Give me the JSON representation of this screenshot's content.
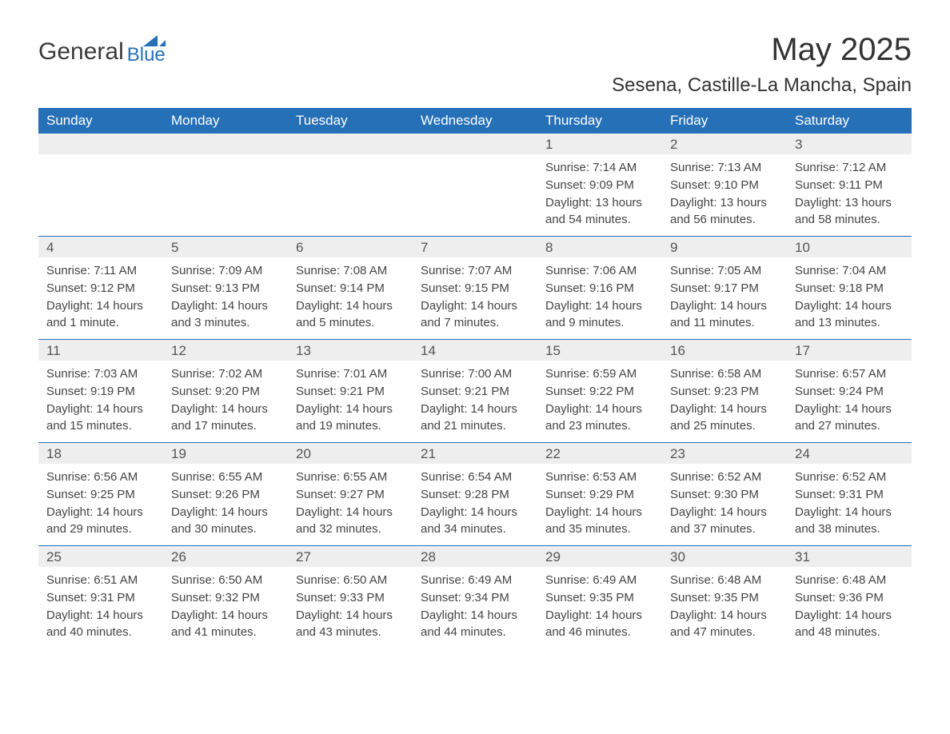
{
  "logo": {
    "text_general": "General",
    "text_blue": "Blue",
    "icon_color": "#2670b8"
  },
  "title": "May 2025",
  "subtitle": "Sesena, Castille-La Mancha, Spain",
  "colors": {
    "header_bg": "#2670b8",
    "header_text": "#ffffff",
    "daynum_bg": "#eeeeee",
    "daynum_text": "#555555",
    "body_text": "#444444",
    "week_border": "#2670b8",
    "page_bg": "#ffffff"
  },
  "fonts": {
    "title_size": 40,
    "subtitle_size": 24,
    "header_cell_size": 17,
    "daynum_size": 17,
    "body_size": 15,
    "family": "Arial"
  },
  "day_headers": [
    "Sunday",
    "Monday",
    "Tuesday",
    "Wednesday",
    "Thursday",
    "Friday",
    "Saturday"
  ],
  "weeks": [
    [
      {
        "day": "",
        "sunrise": "",
        "sunset": "",
        "daylight": ""
      },
      {
        "day": "",
        "sunrise": "",
        "sunset": "",
        "daylight": ""
      },
      {
        "day": "",
        "sunrise": "",
        "sunset": "",
        "daylight": ""
      },
      {
        "day": "",
        "sunrise": "",
        "sunset": "",
        "daylight": ""
      },
      {
        "day": "1",
        "sunrise": "Sunrise: 7:14 AM",
        "sunset": "Sunset: 9:09 PM",
        "daylight": "Daylight: 13 hours and 54 minutes."
      },
      {
        "day": "2",
        "sunrise": "Sunrise: 7:13 AM",
        "sunset": "Sunset: 9:10 PM",
        "daylight": "Daylight: 13 hours and 56 minutes."
      },
      {
        "day": "3",
        "sunrise": "Sunrise: 7:12 AM",
        "sunset": "Sunset: 9:11 PM",
        "daylight": "Daylight: 13 hours and 58 minutes."
      }
    ],
    [
      {
        "day": "4",
        "sunrise": "Sunrise: 7:11 AM",
        "sunset": "Sunset: 9:12 PM",
        "daylight": "Daylight: 14 hours and 1 minute."
      },
      {
        "day": "5",
        "sunrise": "Sunrise: 7:09 AM",
        "sunset": "Sunset: 9:13 PM",
        "daylight": "Daylight: 14 hours and 3 minutes."
      },
      {
        "day": "6",
        "sunrise": "Sunrise: 7:08 AM",
        "sunset": "Sunset: 9:14 PM",
        "daylight": "Daylight: 14 hours and 5 minutes."
      },
      {
        "day": "7",
        "sunrise": "Sunrise: 7:07 AM",
        "sunset": "Sunset: 9:15 PM",
        "daylight": "Daylight: 14 hours and 7 minutes."
      },
      {
        "day": "8",
        "sunrise": "Sunrise: 7:06 AM",
        "sunset": "Sunset: 9:16 PM",
        "daylight": "Daylight: 14 hours and 9 minutes."
      },
      {
        "day": "9",
        "sunrise": "Sunrise: 7:05 AM",
        "sunset": "Sunset: 9:17 PM",
        "daylight": "Daylight: 14 hours and 11 minutes."
      },
      {
        "day": "10",
        "sunrise": "Sunrise: 7:04 AM",
        "sunset": "Sunset: 9:18 PM",
        "daylight": "Daylight: 14 hours and 13 minutes."
      }
    ],
    [
      {
        "day": "11",
        "sunrise": "Sunrise: 7:03 AM",
        "sunset": "Sunset: 9:19 PM",
        "daylight": "Daylight: 14 hours and 15 minutes."
      },
      {
        "day": "12",
        "sunrise": "Sunrise: 7:02 AM",
        "sunset": "Sunset: 9:20 PM",
        "daylight": "Daylight: 14 hours and 17 minutes."
      },
      {
        "day": "13",
        "sunrise": "Sunrise: 7:01 AM",
        "sunset": "Sunset: 9:21 PM",
        "daylight": "Daylight: 14 hours and 19 minutes."
      },
      {
        "day": "14",
        "sunrise": "Sunrise: 7:00 AM",
        "sunset": "Sunset: 9:21 PM",
        "daylight": "Daylight: 14 hours and 21 minutes."
      },
      {
        "day": "15",
        "sunrise": "Sunrise: 6:59 AM",
        "sunset": "Sunset: 9:22 PM",
        "daylight": "Daylight: 14 hours and 23 minutes."
      },
      {
        "day": "16",
        "sunrise": "Sunrise: 6:58 AM",
        "sunset": "Sunset: 9:23 PM",
        "daylight": "Daylight: 14 hours and 25 minutes."
      },
      {
        "day": "17",
        "sunrise": "Sunrise: 6:57 AM",
        "sunset": "Sunset: 9:24 PM",
        "daylight": "Daylight: 14 hours and 27 minutes."
      }
    ],
    [
      {
        "day": "18",
        "sunrise": "Sunrise: 6:56 AM",
        "sunset": "Sunset: 9:25 PM",
        "daylight": "Daylight: 14 hours and 29 minutes."
      },
      {
        "day": "19",
        "sunrise": "Sunrise: 6:55 AM",
        "sunset": "Sunset: 9:26 PM",
        "daylight": "Daylight: 14 hours and 30 minutes."
      },
      {
        "day": "20",
        "sunrise": "Sunrise: 6:55 AM",
        "sunset": "Sunset: 9:27 PM",
        "daylight": "Daylight: 14 hours and 32 minutes."
      },
      {
        "day": "21",
        "sunrise": "Sunrise: 6:54 AM",
        "sunset": "Sunset: 9:28 PM",
        "daylight": "Daylight: 14 hours and 34 minutes."
      },
      {
        "day": "22",
        "sunrise": "Sunrise: 6:53 AM",
        "sunset": "Sunset: 9:29 PM",
        "daylight": "Daylight: 14 hours and 35 minutes."
      },
      {
        "day": "23",
        "sunrise": "Sunrise: 6:52 AM",
        "sunset": "Sunset: 9:30 PM",
        "daylight": "Daylight: 14 hours and 37 minutes."
      },
      {
        "day": "24",
        "sunrise": "Sunrise: 6:52 AM",
        "sunset": "Sunset: 9:31 PM",
        "daylight": "Daylight: 14 hours and 38 minutes."
      }
    ],
    [
      {
        "day": "25",
        "sunrise": "Sunrise: 6:51 AM",
        "sunset": "Sunset: 9:31 PM",
        "daylight": "Daylight: 14 hours and 40 minutes."
      },
      {
        "day": "26",
        "sunrise": "Sunrise: 6:50 AM",
        "sunset": "Sunset: 9:32 PM",
        "daylight": "Daylight: 14 hours and 41 minutes."
      },
      {
        "day": "27",
        "sunrise": "Sunrise: 6:50 AM",
        "sunset": "Sunset: 9:33 PM",
        "daylight": "Daylight: 14 hours and 43 minutes."
      },
      {
        "day": "28",
        "sunrise": "Sunrise: 6:49 AM",
        "sunset": "Sunset: 9:34 PM",
        "daylight": "Daylight: 14 hours and 44 minutes."
      },
      {
        "day": "29",
        "sunrise": "Sunrise: 6:49 AM",
        "sunset": "Sunset: 9:35 PM",
        "daylight": "Daylight: 14 hours and 46 minutes."
      },
      {
        "day": "30",
        "sunrise": "Sunrise: 6:48 AM",
        "sunset": "Sunset: 9:35 PM",
        "daylight": "Daylight: 14 hours and 47 minutes."
      },
      {
        "day": "31",
        "sunrise": "Sunrise: 6:48 AM",
        "sunset": "Sunset: 9:36 PM",
        "daylight": "Daylight: 14 hours and 48 minutes."
      }
    ]
  ]
}
